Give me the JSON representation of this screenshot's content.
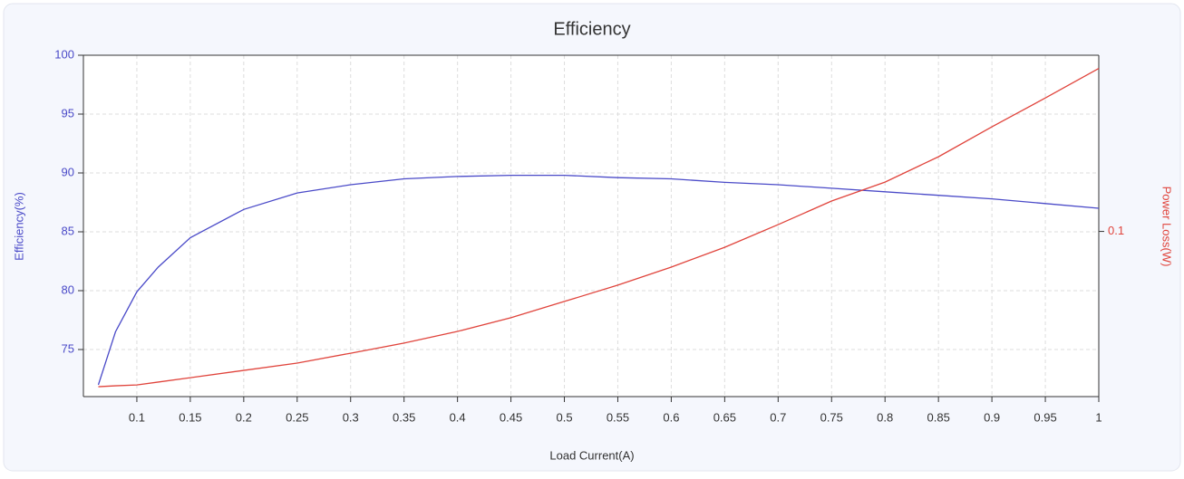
{
  "chart_data": {
    "type": "line",
    "title": "Efficiency",
    "x_label": "Load Current(A)",
    "y_label": "Efficiency(%)",
    "y2_label": "Power Loss(W)",
    "x": [
      0.064,
      0.08,
      0.1,
      0.12,
      0.15,
      0.2,
      0.25,
      0.3,
      0.35,
      0.4,
      0.45,
      0.5,
      0.55,
      0.6,
      0.65,
      0.7,
      0.75,
      0.8,
      0.85,
      0.9,
      0.95,
      1
    ],
    "series": [
      {
        "name": "Efficiency(%)",
        "color": "#4a4ac8",
        "axis": "y",
        "values": [
          72,
          76.5,
          79.9,
          82,
          84.5,
          86.9,
          88.3,
          89.0,
          89.5,
          89.7,
          89.8,
          89.8,
          89.6,
          89.5,
          89.2,
          89.0,
          88.7,
          88.4,
          88.1,
          87.8,
          87.4,
          87.0
        ]
      },
      {
        "name": "Power Loss(W)",
        "color": "#e0443c",
        "axis": "y2",
        "values": [
          0.0295,
          0.0299,
          0.0303,
          0.0316,
          0.0336,
          0.0369,
          0.0402,
          0.0447,
          0.0493,
          0.0546,
          0.0608,
          0.0682,
          0.0756,
          0.0838,
          0.0928,
          0.1031,
          0.1138,
          0.1224,
          0.1339,
          0.1475,
          0.1606,
          0.174
        ]
      }
    ],
    "xlim": [
      0.05,
      1
    ],
    "xticks": [
      0.1,
      0.15,
      0.2,
      0.25,
      0.3,
      0.35,
      0.4,
      0.45,
      0.5,
      0.55,
      0.6,
      0.65,
      0.7,
      0.75,
      0.8,
      0.85,
      0.9,
      0.95,
      1
    ],
    "ylim": [
      71,
      100
    ],
    "yticks": [
      75,
      80,
      85,
      90,
      95,
      100
    ],
    "y2lim": [
      0.025,
      0.18
    ],
    "y2ticks": [
      0.1
    ],
    "grid": true
  }
}
